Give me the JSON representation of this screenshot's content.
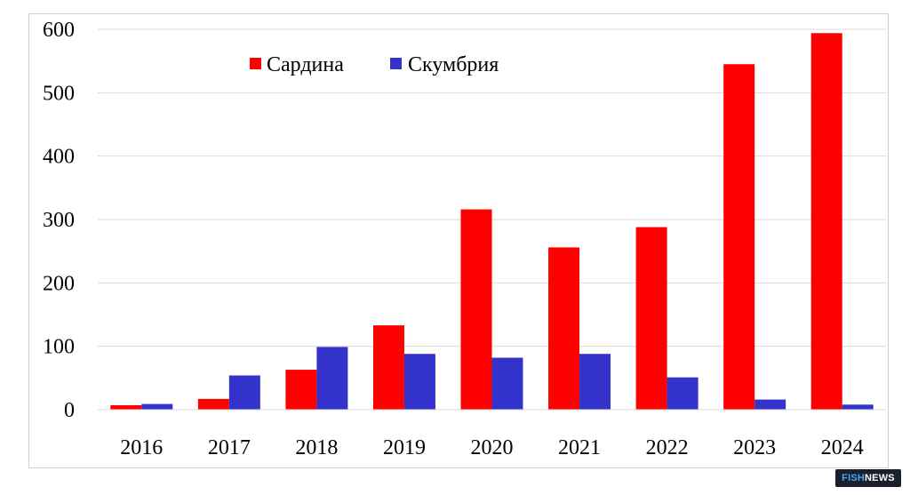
{
  "chart_data": {
    "type": "bar",
    "categories": [
      "2016",
      "2017",
      "2018",
      "2019",
      "2020",
      "2021",
      "2022",
      "2023",
      "2024"
    ],
    "series": [
      {
        "name": "Сардина",
        "color": "#ff0000",
        "values": [
          7,
          17,
          63,
          133,
          316,
          256,
          288,
          545,
          594
        ]
      },
      {
        "name": "Скумбрия",
        "color": "#3333cc",
        "values": [
          9,
          54,
          99,
          88,
          82,
          88,
          51,
          16,
          8
        ]
      }
    ],
    "ylim": [
      0,
      600
    ],
    "yticks": [
      0,
      100,
      200,
      300,
      400,
      500,
      600
    ],
    "grid": true,
    "legend_position": "top-left"
  },
  "watermark": {
    "part1": "FISH",
    "part2": "NEWS"
  }
}
